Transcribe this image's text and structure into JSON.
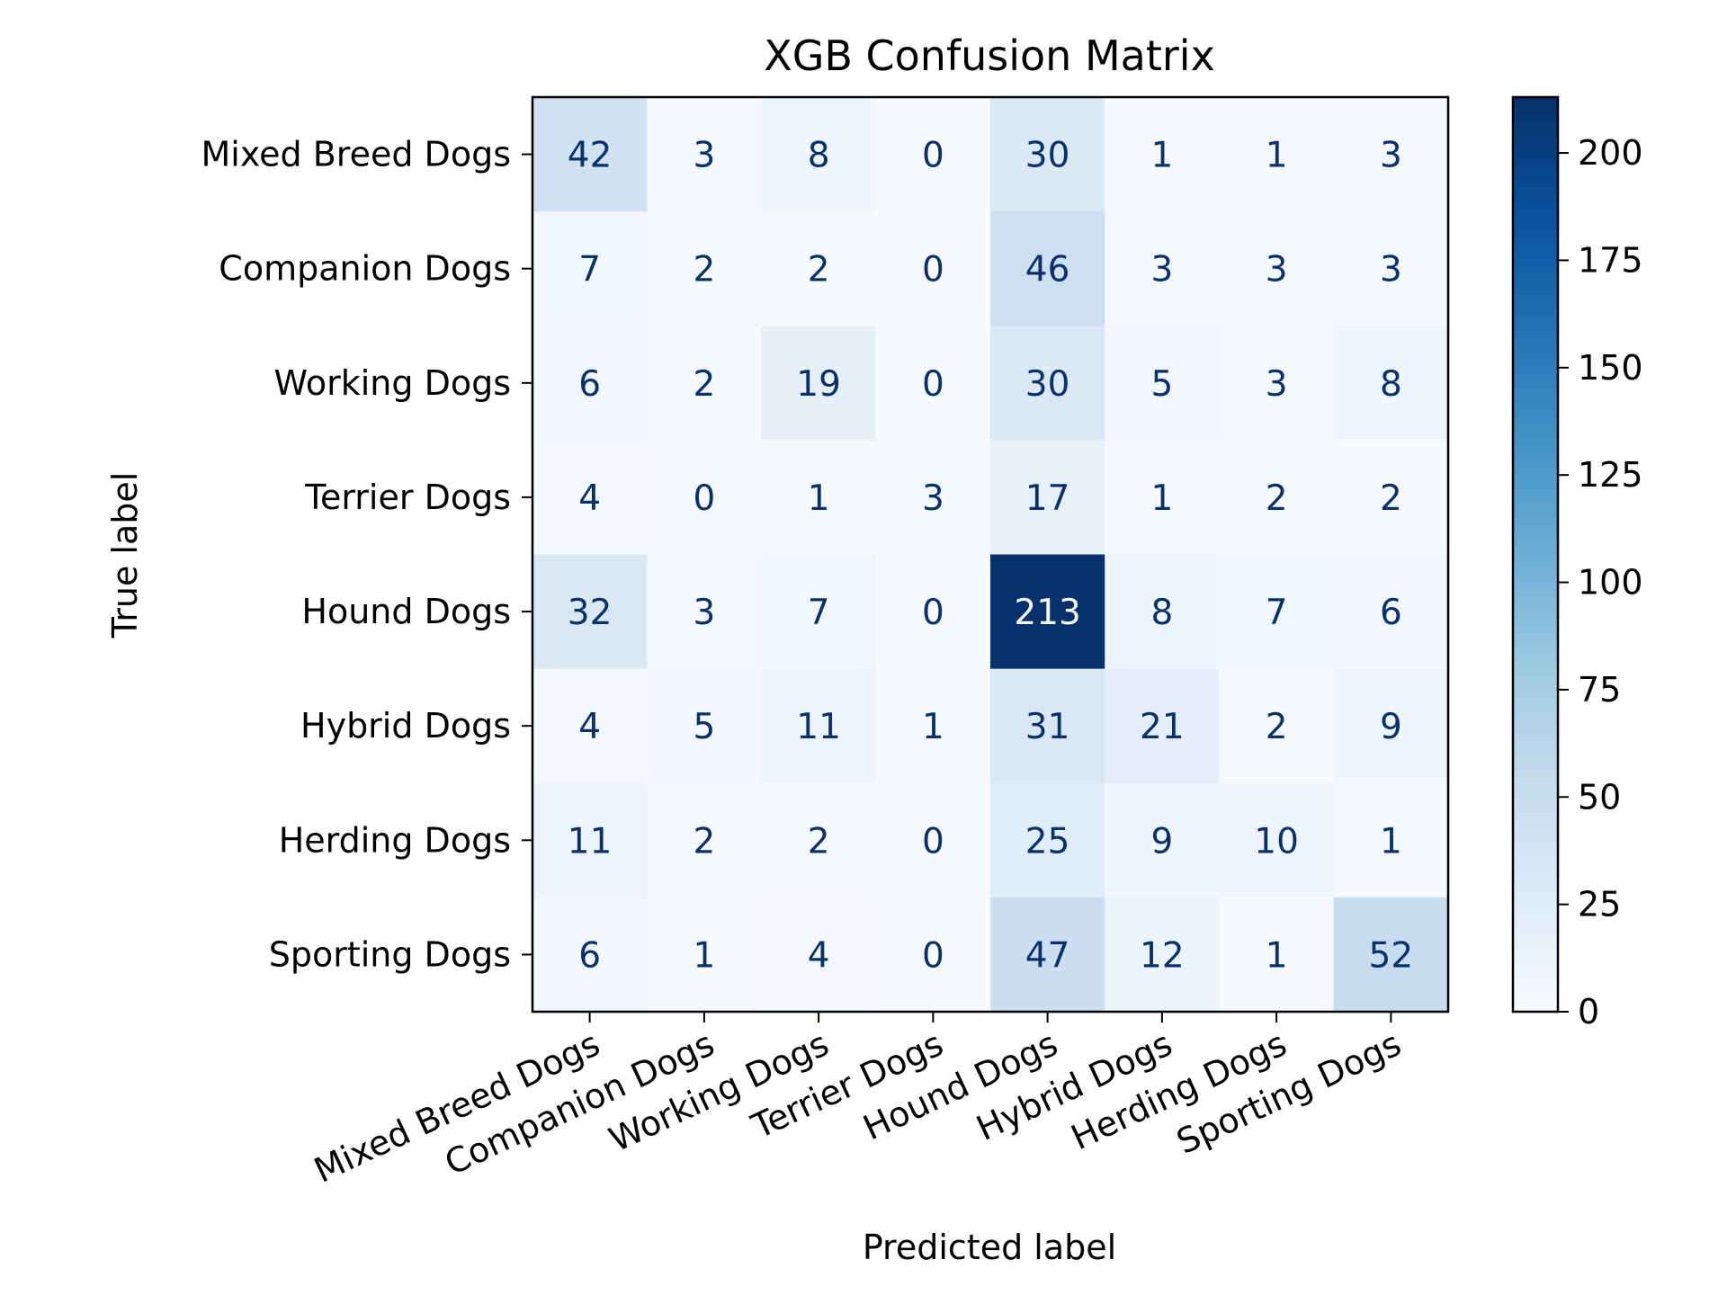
{
  "chart_data": {
    "type": "heatmap",
    "title": "XGB Confusion Matrix",
    "xlabel": "Predicted label",
    "ylabel": "True label",
    "x_categories": [
      "Mixed Breed Dogs",
      "Companion Dogs",
      "Working Dogs",
      "Terrier Dogs",
      "Hound Dogs",
      "Hybrid Dogs",
      "Herding Dogs",
      "Sporting Dogs"
    ],
    "y_categories": [
      "Mixed Breed Dogs",
      "Companion Dogs",
      "Working Dogs",
      "Terrier Dogs",
      "Hound Dogs",
      "Hybrid Dogs",
      "Herding Dogs",
      "Sporting Dogs"
    ],
    "values": [
      [
        42,
        3,
        8,
        0,
        30,
        1,
        1,
        3
      ],
      [
        7,
        2,
        2,
        0,
        46,
        3,
        3,
        3
      ],
      [
        6,
        2,
        19,
        0,
        30,
        5,
        3,
        8
      ],
      [
        4,
        0,
        1,
        3,
        17,
        1,
        2,
        2
      ],
      [
        32,
        3,
        7,
        0,
        213,
        8,
        7,
        6
      ],
      [
        4,
        5,
        11,
        1,
        31,
        21,
        2,
        9
      ],
      [
        11,
        2,
        2,
        0,
        25,
        9,
        10,
        1
      ],
      [
        6,
        1,
        4,
        0,
        47,
        12,
        1,
        52
      ]
    ],
    "colorbar": {
      "colormap": "Blues",
      "range": [
        0,
        213
      ],
      "ticks": [
        0,
        25,
        50,
        75,
        100,
        125,
        150,
        175,
        200
      ],
      "tick_labels": [
        "0",
        "25",
        "50",
        "75",
        "100",
        "125",
        "150",
        "175",
        "200"
      ]
    },
    "x_tick_rotation_deg": 25,
    "grid": false,
    "colors": {
      "low": "#f7fbff",
      "high": "#08306b",
      "text_dark": "#08306b",
      "text_light": "#f7fbff"
    }
  }
}
